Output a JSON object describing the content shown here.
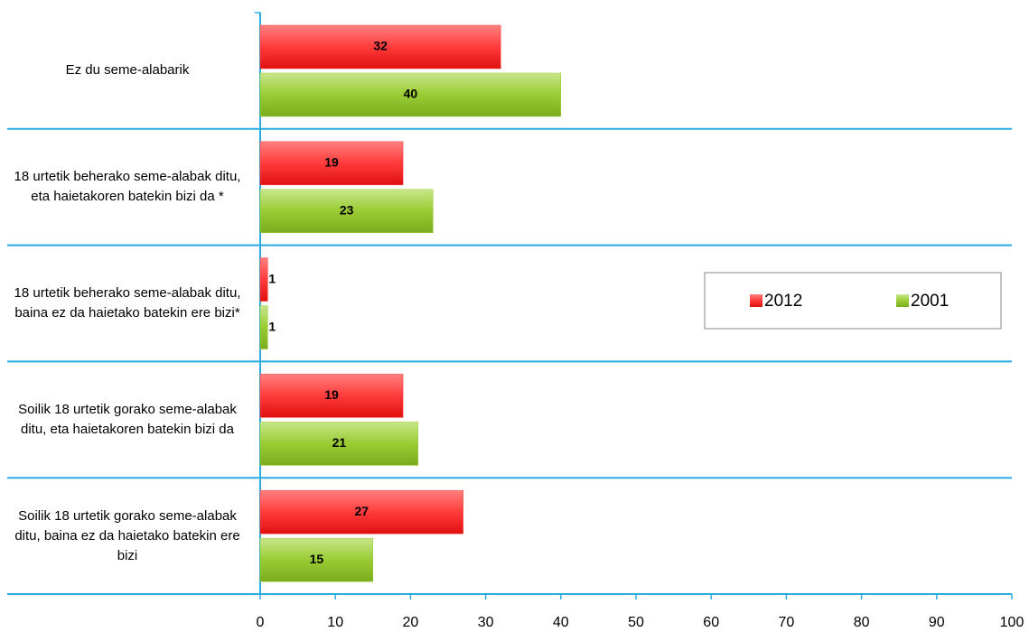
{
  "chart_data": {
    "type": "bar",
    "orientation": "horizontal",
    "categories": [
      "Ez du seme-alabarik",
      "18 urtetik beherako seme-alabak ditu, eta haietakoren batekin bizi da *",
      "18 urtetik beherako seme-alabak ditu, baina ez da haietako batekin ere bizi*",
      "Soilik 18 urtetik gorako seme-alabak ditu, eta haietakoren batekin bizi da",
      "Soilik 18 urtetik gorako seme-alabak ditu, baina ez da haietako batekin ere bizi"
    ],
    "series": [
      {
        "name": "2012",
        "color": "#ff3b3b",
        "values": [
          32,
          19,
          1,
          19,
          27
        ]
      },
      {
        "name": "2001",
        "color": "#99cc33",
        "values": [
          40,
          23,
          1,
          21,
          15
        ]
      }
    ],
    "xlim": [
      0,
      100
    ],
    "xticks": [
      0,
      10,
      20,
      30,
      40,
      50,
      60,
      70,
      80,
      90,
      100
    ],
    "legend": "right"
  }
}
